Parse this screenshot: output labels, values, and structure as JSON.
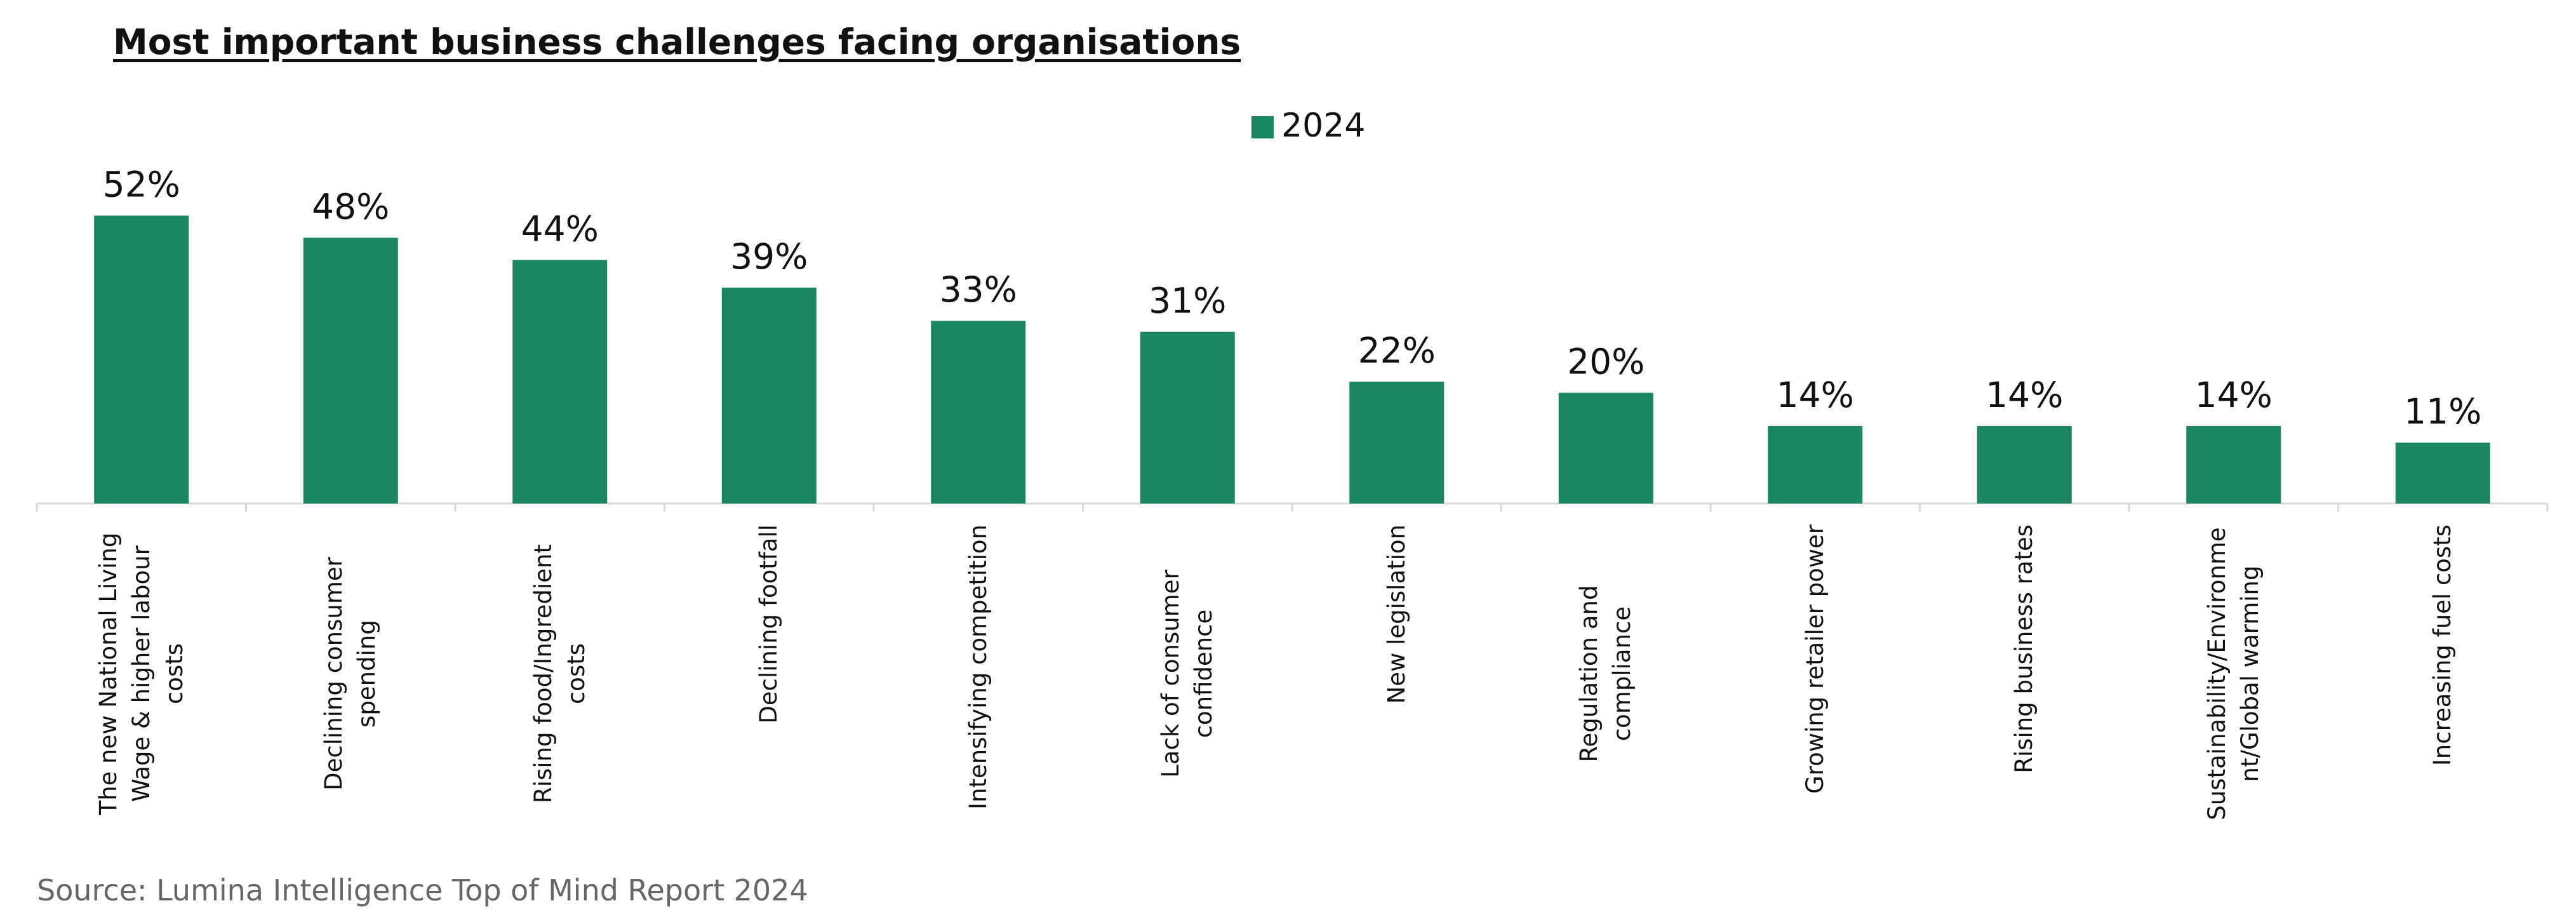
{
  "chart_data": {
    "type": "bar",
    "title": "Most important business challenges facing organisations",
    "categories": [
      "The new National Living Wage & higher labour costs",
      "Declining consumer spending",
      "Rising food/Ingredient costs",
      "Declining footfall",
      "Intensifying competition",
      "Lack of consumer confidence",
      "New legislation",
      "Regulation and compliance",
      "Growing retailer power",
      "Rising business rates",
      "Sustainability/Environment/Global warming",
      "Increasing fuel costs"
    ],
    "series": [
      {
        "name": "2024",
        "color": "#1a8760",
        "values": [
          52,
          48,
          44,
          39,
          33,
          31,
          22,
          20,
          14,
          14,
          14,
          11
        ],
        "value_labels": [
          "52%",
          "48%",
          "44%",
          "39%",
          "33%",
          "31%",
          "22%",
          "20%",
          "14%",
          "14%",
          "14%",
          "11%"
        ]
      }
    ],
    "source": "Source: Lumina Intelligence Top of Mind Report 2024"
  }
}
